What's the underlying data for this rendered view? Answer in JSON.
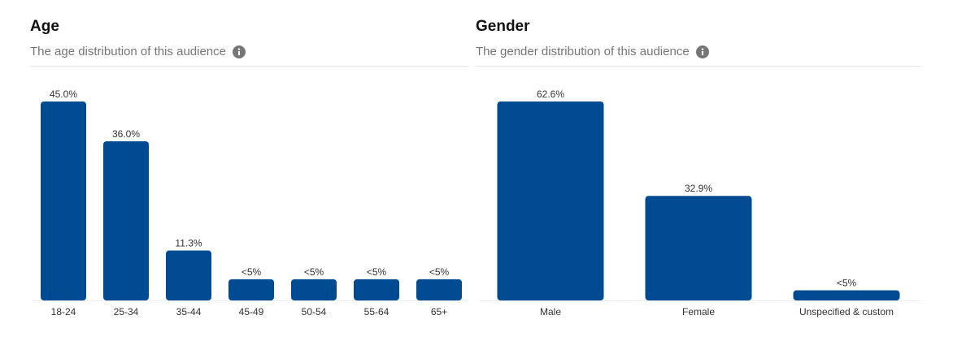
{
  "age_panel": {
    "title": "Age",
    "subtitle": "The age distribution of this audience",
    "info_icon": "info-icon"
  },
  "gender_panel": {
    "title": "Gender",
    "subtitle": "The gender distribution of this audience",
    "info_icon": "info-icon"
  },
  "colors": {
    "bar": "#004b91",
    "title": "#111111",
    "subtitle": "#767676",
    "divider": "#e8e8e8"
  },
  "chart_data": [
    {
      "type": "bar",
      "title": "Age",
      "subtitle": "The age distribution of this audience",
      "categories": [
        "18-24",
        "25-34",
        "35-44",
        "45-49",
        "50-54",
        "55-64",
        "65+"
      ],
      "values": [
        45.0,
        36.0,
        11.3,
        4.8,
        4.8,
        4.8,
        4.8
      ],
      "labels": [
        "45.0%",
        "36.0%",
        "11.3%",
        "<5%",
        "<5%",
        "<5%",
        "<5%"
      ],
      "ylim": [
        0,
        45
      ],
      "grid": false,
      "legend": "none"
    },
    {
      "type": "bar",
      "title": "Gender",
      "subtitle": "The gender distribution of this audience",
      "categories": [
        "Male",
        "Female",
        "Unspecified & custom"
      ],
      "values": [
        62.6,
        32.9,
        3.2
      ],
      "labels": [
        "62.6%",
        "32.9%",
        "<5%"
      ],
      "ylim": [
        0,
        62.6
      ],
      "grid": false,
      "legend": "none"
    }
  ]
}
